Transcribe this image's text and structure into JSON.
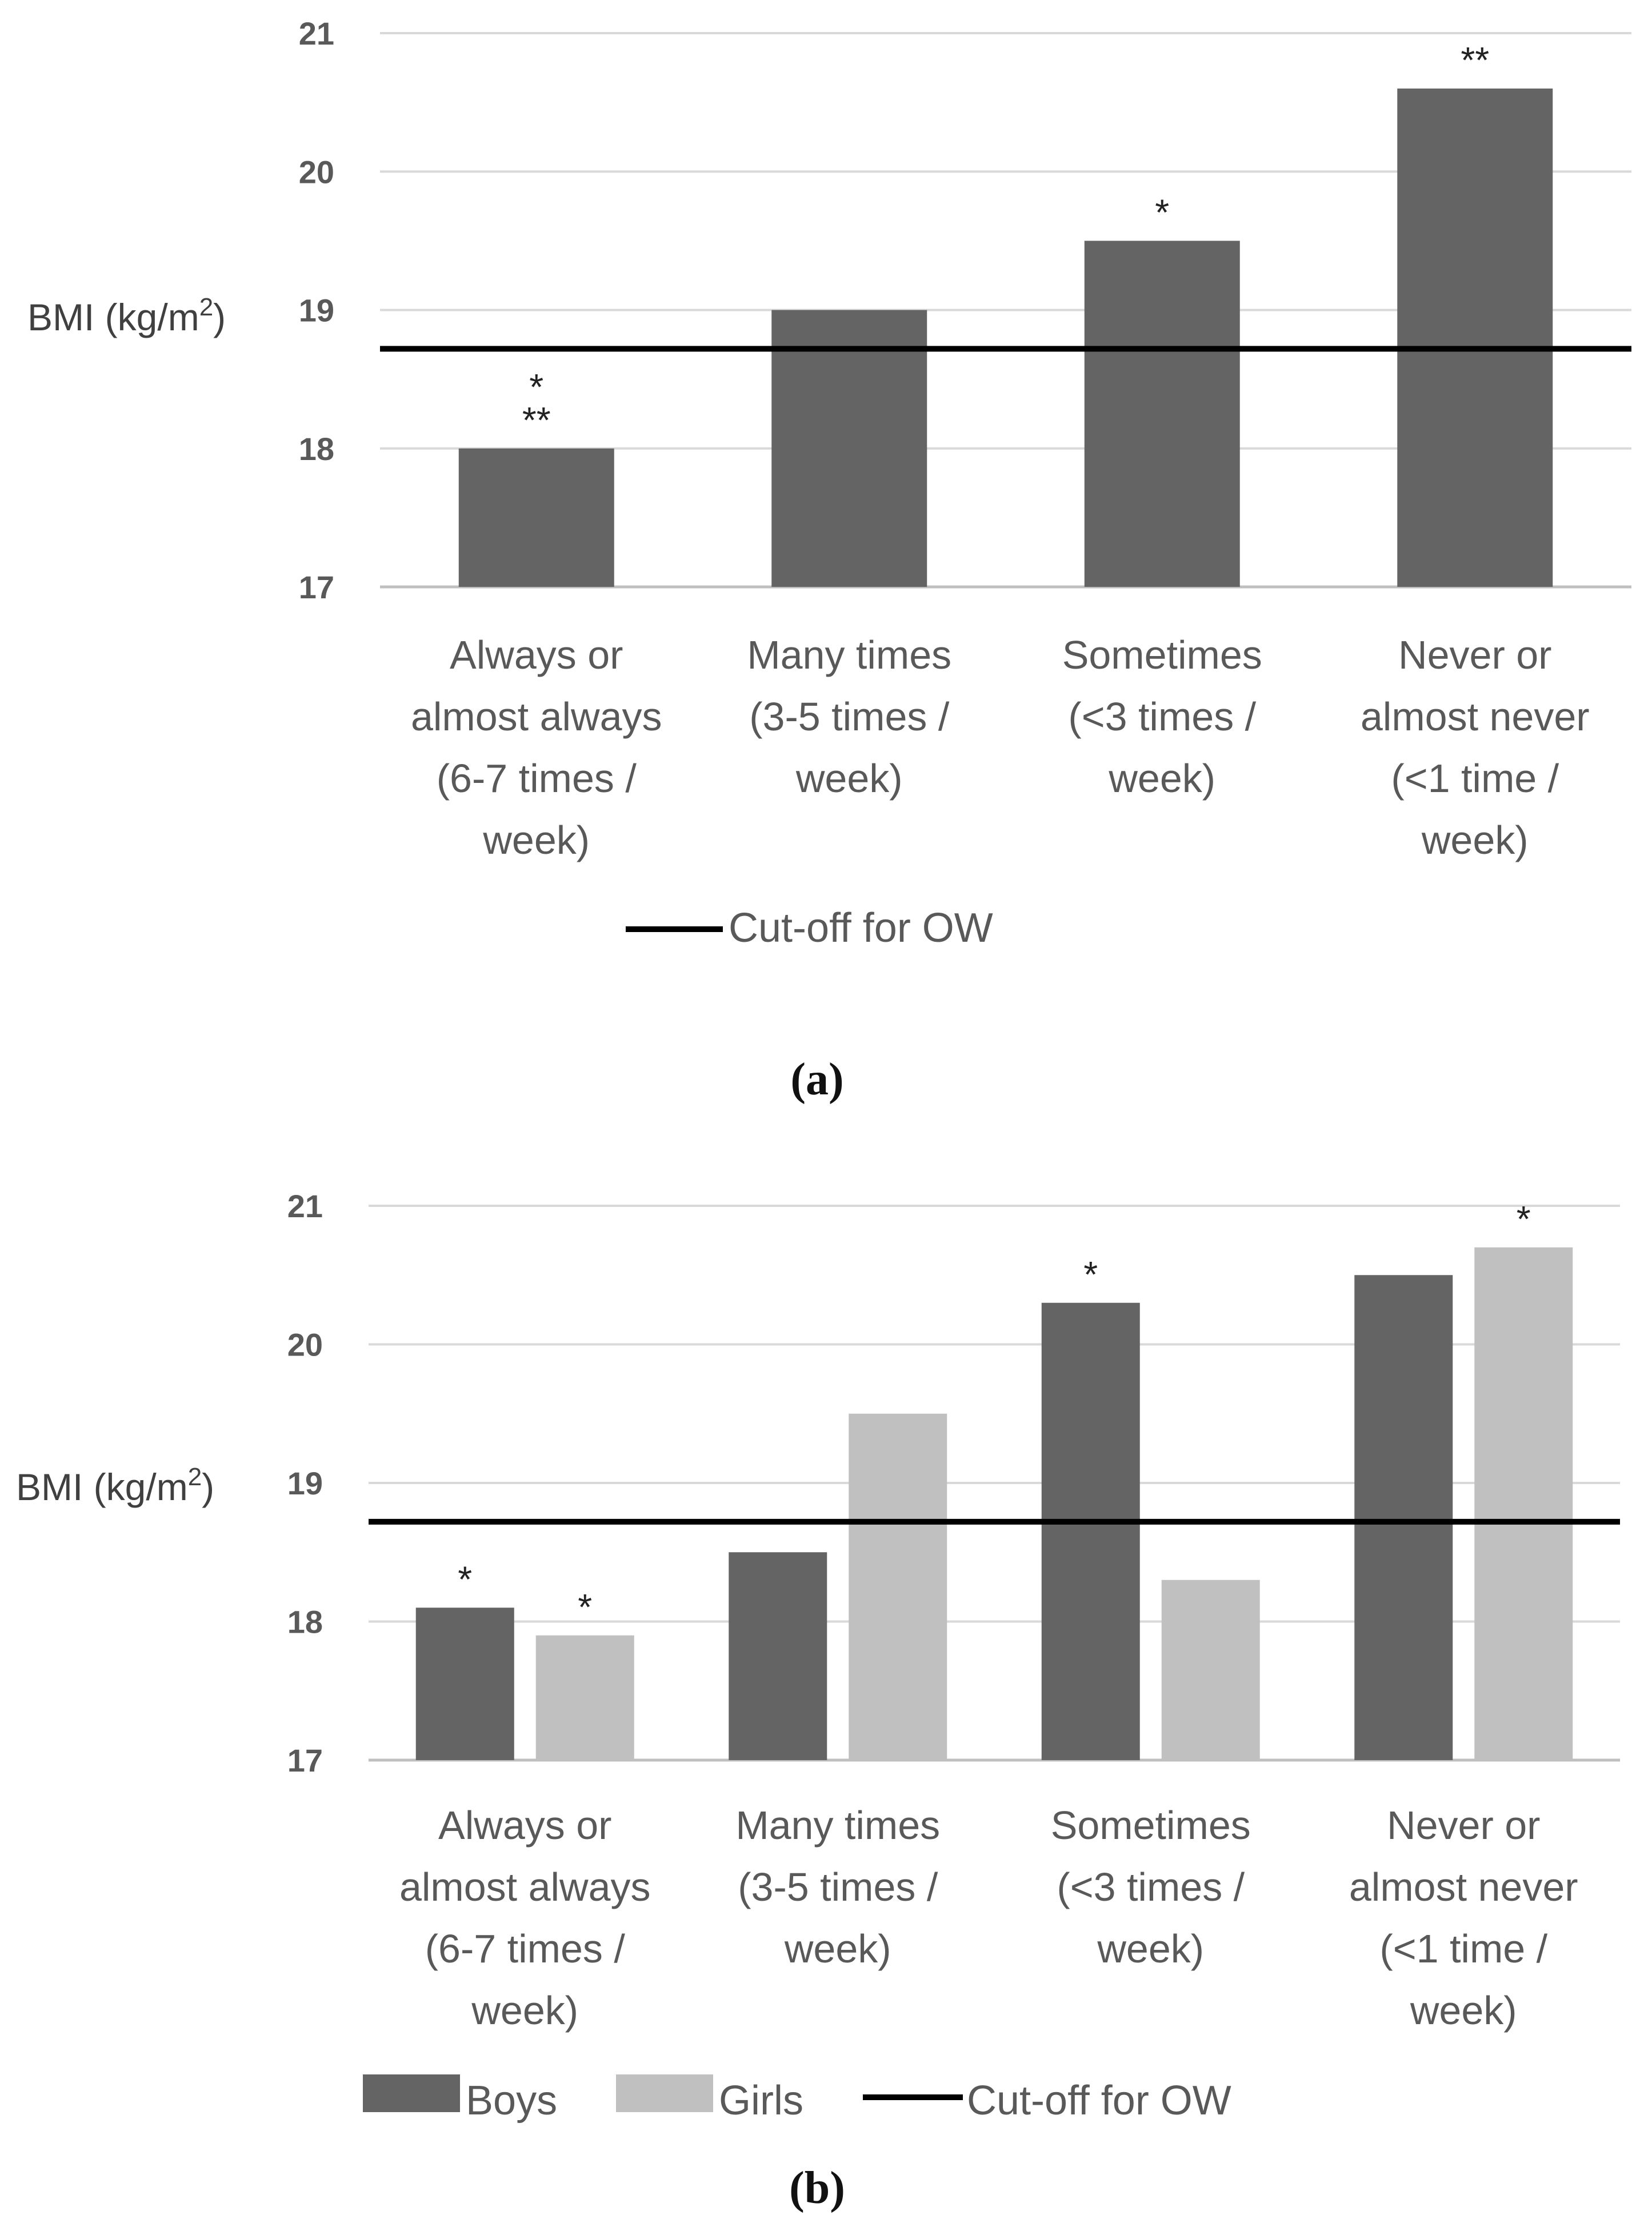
{
  "colors": {
    "boys": "#646464",
    "girls": "#c0c0c0",
    "cutoff": "#000000",
    "grid": "#d9d9d9"
  },
  "chart_data": [
    {
      "type": "bar",
      "panel_label": "(a)",
      "ylabel": "BMI (kg/m",
      "ylabel_sup": "2",
      "ylabel_close": ")",
      "ylim": [
        17,
        21
      ],
      "yticks": [
        "17",
        "18",
        "19",
        "20",
        "21"
      ],
      "categories": [
        [
          "Always or",
          "almost always",
          "(6-7 times /",
          "week)"
        ],
        [
          "Many times",
          "(3-5 times /",
          "week)"
        ],
        [
          "Sometimes",
          "(<3 times /",
          "week)"
        ],
        [
          "Never or",
          "almost never",
          "(<1 time /",
          "week)"
        ]
      ],
      "series": [
        {
          "name": "",
          "color_key": "boys",
          "values": [
            18.0,
            19.0,
            19.5,
            20.6
          ],
          "annotations": [
            [
              "*",
              "**"
            ],
            [],
            [
              "*"
            ],
            [
              "**"
            ]
          ]
        }
      ],
      "cutoff": {
        "name": "Cut-off for OW",
        "value": 18.72
      }
    },
    {
      "type": "bar",
      "panel_label": "(b)",
      "ylabel": "BMI (kg/m",
      "ylabel_sup": "2",
      "ylabel_close": ")",
      "ylim": [
        17,
        21
      ],
      "yticks": [
        "17",
        "18",
        "19",
        "20",
        "21"
      ],
      "categories": [
        [
          "Always or",
          "almost always",
          "(6-7 times /",
          "week)"
        ],
        [
          "Many times",
          "(3-5 times /",
          "week)"
        ],
        [
          "Sometimes",
          "(<3 times /",
          "week)"
        ],
        [
          "Never or",
          "almost never",
          "(<1 time /",
          "week)"
        ]
      ],
      "series": [
        {
          "name": "Boys",
          "color_key": "boys",
          "values": [
            18.1,
            18.5,
            20.3,
            20.5
          ],
          "annotations": [
            [
              "*"
            ],
            [],
            [
              "*"
            ],
            []
          ]
        },
        {
          "name": "Girls",
          "color_key": "girls",
          "values": [
            17.9,
            19.5,
            18.3,
            20.7
          ],
          "annotations": [
            [
              "*"
            ],
            [],
            [],
            [
              "*"
            ]
          ]
        }
      ],
      "cutoff": {
        "name": "Cut-off for OW",
        "value": 18.72
      }
    }
  ]
}
